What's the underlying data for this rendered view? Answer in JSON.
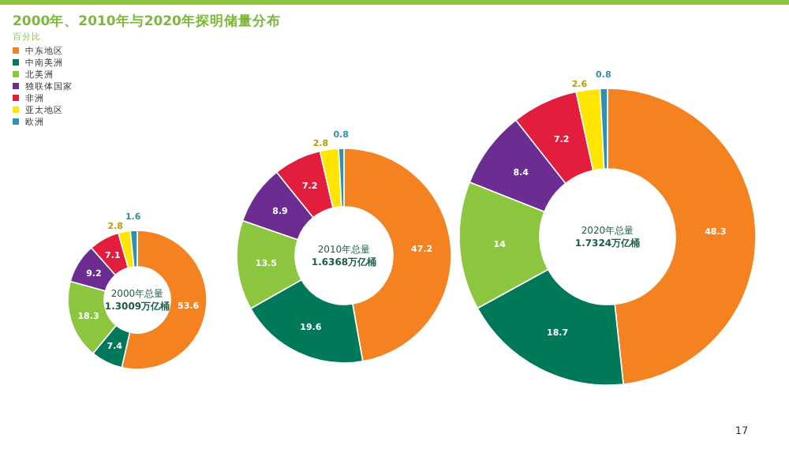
{
  "chart_data": [
    {
      "type": "donut",
      "title": "2000年、2010年与2020年探明储量分布",
      "subtitle": "百分比",
      "legend": "top left",
      "categories": [
        "中东地区",
        "中南美洲",
        "北美洲",
        "独联体国家",
        "非洲",
        "亚太地区",
        "欧洲"
      ],
      "values": [
        53.6,
        7.4,
        18.3,
        9.2,
        7.1,
        2.8,
        1.6
      ],
      "value_labels": [
        "53.6",
        "7.4",
        "18.3",
        "9.2",
        "7.1",
        "2.8",
        "1.6"
      ],
      "colors": [
        "#f58220",
        "#00785a",
        "#8cc63f",
        "#6c2c91",
        "#e31d3c",
        "#ffe500",
        "#2e91b0"
      ],
      "annotations": [
        "2000年总量",
        "1.3009万亿桶"
      ]
    },
    {
      "type": "donut",
      "values": [
        47.2,
        19.6,
        13.5,
        8.9,
        7.2,
        2.8,
        0.8
      ],
      "value_labels": [
        "47.2",
        "19.6",
        "13.5",
        "8.9",
        "7.2",
        "2.8",
        "0.8"
      ],
      "colors": [
        "#f58220",
        "#00785a",
        "#8cc63f",
        "#6c2c91",
        "#e31d3c",
        "#ffe500",
        "#2e91b0"
      ],
      "annotations": [
        "2010年总量",
        "1.6368万亿桶"
      ]
    },
    {
      "type": "donut",
      "values": [
        48.3,
        18.7,
        14.0,
        8.4,
        7.2,
        2.6,
        0.8
      ],
      "value_labels": [
        "48.3",
        "18.7",
        "14",
        "8.4",
        "7.2",
        "2.6",
        "0.8"
      ],
      "colors": [
        "#f58220",
        "#00785a",
        "#8cc63f",
        "#6c2c91",
        "#e31d3c",
        "#ffe500",
        "#2e91b0"
      ],
      "annotations": [
        "2020年总量",
        "1.7324万亿桶",
        "17"
      ]
    }
  ]
}
